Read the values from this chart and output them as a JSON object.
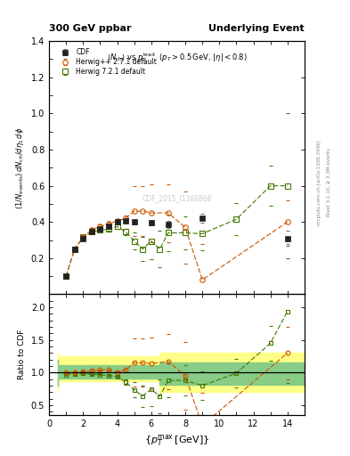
{
  "title_left": "300 GeV ppbar",
  "title_right": "Underlying Event",
  "annotation": "<N_{ch}> vs p_T^{lead} (p_T > 0.5 GeV, |#eta| < 0.8)",
  "xlabel": "{p_{T}^{max} [GeV]}",
  "ylabel_main": "(1/N_{events}) dN_{ch}/d#eta_{1} d#phi",
  "ylabel_ratio": "Ratio to CDF",
  "watermark": "CDF_2015_I1388868",
  "right_label": "Rivet 3.1.10, ≥ 3.3M events",
  "right_label2": "mcplots.cern.ch [arXiv:1306.3436]",
  "cdf_x": [
    1.0,
    1.5,
    2.0,
    2.5,
    3.0,
    3.5,
    4.0,
    4.5,
    5.0,
    6.0,
    7.0,
    9.0,
    14.0
  ],
  "cdf_y": [
    0.1,
    0.25,
    0.31,
    0.345,
    0.36,
    0.375,
    0.4,
    0.405,
    0.4,
    0.395,
    0.385,
    0.42,
    0.31
  ],
  "cdf_yerr": [
    0.008,
    0.012,
    0.012,
    0.01,
    0.008,
    0.008,
    0.008,
    0.01,
    0.012,
    0.015,
    0.02,
    0.025,
    0.04
  ],
  "hpp_x": [
    1.0,
    1.5,
    2.0,
    2.5,
    3.0,
    3.5,
    4.0,
    4.5,
    5.0,
    5.5,
    6.0,
    7.0,
    8.0,
    9.0,
    14.0
  ],
  "hpp_y": [
    0.1,
    0.25,
    0.315,
    0.355,
    0.375,
    0.39,
    0.405,
    0.42,
    0.46,
    0.46,
    0.45,
    0.45,
    0.37,
    0.08,
    0.4
  ],
  "hpp_yerr": [
    0.008,
    0.012,
    0.012,
    0.01,
    0.01,
    0.01,
    0.012,
    0.015,
    0.14,
    0.14,
    0.16,
    0.16,
    0.2,
    0.2,
    0.12
  ],
  "h721_x": [
    1.0,
    1.5,
    2.0,
    2.5,
    3.0,
    3.5,
    4.0,
    4.5,
    5.0,
    5.5,
    6.0,
    6.5,
    7.0,
    8.0,
    9.0,
    11.0,
    13.0,
    14.0
  ],
  "h721_y": [
    0.1,
    0.25,
    0.315,
    0.345,
    0.355,
    0.36,
    0.375,
    0.345,
    0.295,
    0.25,
    0.295,
    0.25,
    0.34,
    0.34,
    0.335,
    0.415,
    0.6,
    0.6
  ],
  "h721_yerr": [
    0.008,
    0.012,
    0.01,
    0.008,
    0.008,
    0.008,
    0.012,
    0.018,
    0.045,
    0.065,
    0.1,
    0.1,
    0.1,
    0.09,
    0.09,
    0.09,
    0.11,
    0.4
  ],
  "ratio_hpp_x": [
    1.0,
    1.5,
    2.0,
    2.5,
    3.0,
    3.5,
    4.0,
    4.5,
    5.0,
    5.5,
    6.0,
    7.0,
    8.0,
    9.0,
    14.0
  ],
  "ratio_hpp_y": [
    1.0,
    1.0,
    1.015,
    1.03,
    1.04,
    1.04,
    1.01,
    1.04,
    1.15,
    1.15,
    1.14,
    1.17,
    0.95,
    0.19,
    1.3
  ],
  "ratio_hpp_yerr": [
    0.008,
    0.012,
    0.012,
    0.01,
    0.01,
    0.01,
    0.012,
    0.015,
    0.37,
    0.37,
    0.4,
    0.42,
    0.52,
    0.5,
    0.4
  ],
  "ratio_h721_x": [
    1.0,
    1.5,
    2.0,
    2.5,
    3.0,
    3.5,
    4.0,
    4.5,
    5.0,
    5.5,
    6.0,
    6.5,
    7.0,
    8.0,
    9.0,
    11.0,
    13.0,
    14.0
  ],
  "ratio_h721_y": [
    0.97,
    0.975,
    0.985,
    0.975,
    0.965,
    0.955,
    0.94,
    0.855,
    0.735,
    0.64,
    0.745,
    0.635,
    0.88,
    0.88,
    0.8,
    0.99,
    1.45,
    1.94
  ],
  "ratio_h721_yerr": [
    0.008,
    0.012,
    0.01,
    0.008,
    0.008,
    0.008,
    0.012,
    0.045,
    0.115,
    0.165,
    0.255,
    0.255,
    0.26,
    0.235,
    0.22,
    0.22,
    0.27,
    1.1
  ],
  "band_x": [
    0.5,
    1.5,
    2.5,
    3.5,
    4.5,
    5.5,
    6.5,
    9.0,
    15.5
  ],
  "band_yel_lo": [
    0.7,
    0.87,
    0.87,
    0.87,
    0.87,
    0.87,
    0.87,
    0.7,
    0.7
  ],
  "band_yel_hi": [
    1.3,
    1.25,
    1.25,
    1.25,
    1.25,
    1.25,
    1.25,
    1.3,
    1.3
  ],
  "band_grn_lo": [
    0.8,
    0.91,
    0.91,
    0.91,
    0.91,
    0.91,
    0.91,
    0.82,
    0.82
  ],
  "band_grn_hi": [
    1.2,
    1.12,
    1.12,
    1.12,
    1.12,
    1.12,
    1.12,
    1.15,
    1.15
  ],
  "xlim": [
    0.0,
    15.0
  ],
  "xticks": [
    0,
    2,
    4,
    6,
    8,
    10,
    12,
    14
  ],
  "ylim_main": [
    0.0,
    1.4
  ],
  "ylim_ratio": [
    0.35,
    2.2
  ],
  "yticks_main": [
    0.2,
    0.4,
    0.6,
    0.8,
    1.0,
    1.2,
    1.4
  ],
  "yticks_ratio": [
    0.5,
    1.0,
    1.5,
    2.0
  ],
  "color_cdf": "#222222",
  "color_hpp": "#cc5500",
  "color_h721": "#447700",
  "color_yellow": "#ffff88",
  "color_green": "#88cc88",
  "bg_color": "#ffffff"
}
